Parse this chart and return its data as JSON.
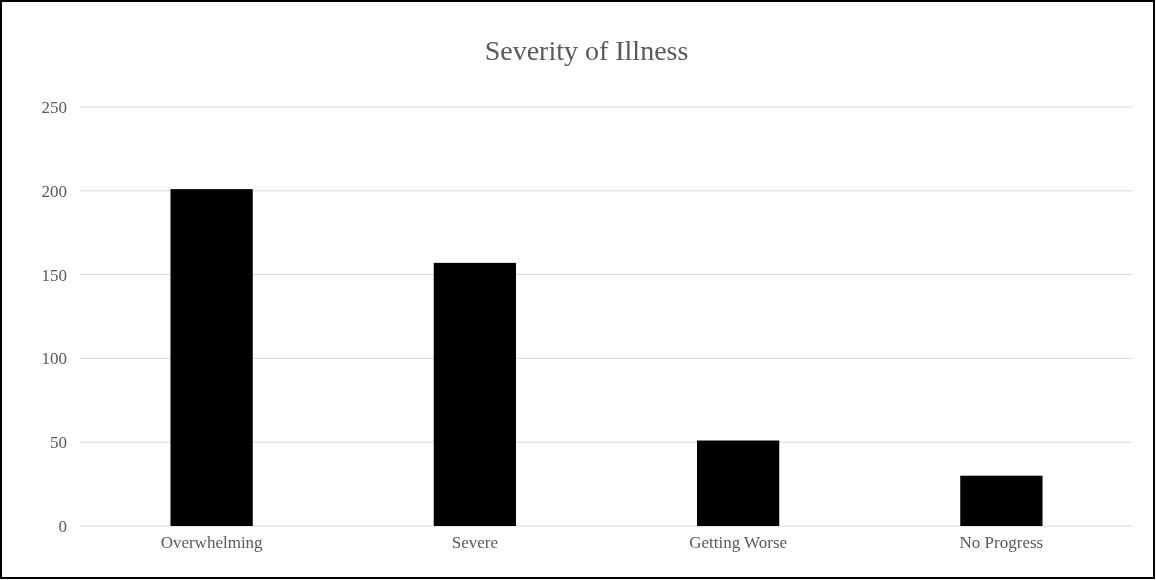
{
  "chart_data": {
    "type": "bar",
    "title": "Severity of Illness",
    "categories": [
      "Overwhelming",
      "Severe",
      "Getting Worse",
      "No Progress"
    ],
    "values": [
      201,
      157,
      51,
      30
    ],
    "color": "#000000",
    "ylim": [
      0,
      250
    ],
    "yticks": [
      0,
      50,
      100,
      150,
      200,
      250
    ],
    "grid": "y"
  }
}
